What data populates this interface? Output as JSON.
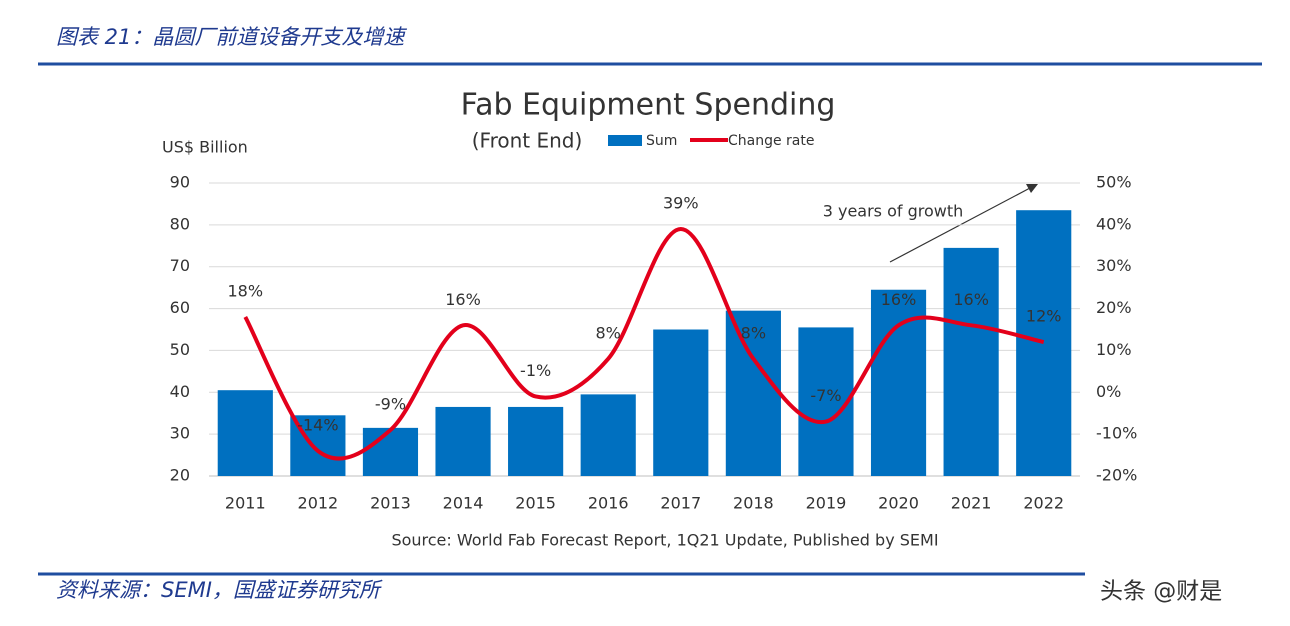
{
  "header": {
    "title": "图表 21：晶圆厂前道设备开支及增速"
  },
  "footer": {
    "source": "资料来源：SEMI，国盛证券研究所",
    "watermark": "头条 @财是"
  },
  "chart_data": {
    "type": "bar-line",
    "title": "Fab Equipment Spending",
    "subtitle": "(Front End)",
    "y_label": "US$ Billion",
    "annotation": "3 years of growth",
    "source": "Source: World Fab Forecast Report, 1Q21 Update, Published by SEMI",
    "categories": [
      "2011",
      "2012",
      "2013",
      "2014",
      "2015",
      "2016",
      "2017",
      "2018",
      "2019",
      "2020",
      "2021",
      "2022"
    ],
    "series": [
      {
        "name": "Sum",
        "type": "bar",
        "color": "#0070c0",
        "values": [
          40.5,
          34.5,
          31.5,
          36.5,
          36.5,
          39.5,
          55,
          59.5,
          55.5,
          64.5,
          74.5,
          83.5
        ]
      },
      {
        "name": "Change rate",
        "type": "line",
        "axis": "y2",
        "color": "#e3001b",
        "values": [
          18,
          -14,
          -9,
          16,
          -1,
          8,
          39,
          8,
          -7,
          16,
          16,
          12
        ],
        "value_labels": [
          "18%",
          "-14%",
          "-9%",
          "16%",
          "-1%",
          "8%",
          "39%",
          "8%",
          "-7%",
          "16%",
          "16%",
          "12%"
        ]
      }
    ],
    "ylim": [
      20,
      90
    ],
    "yticks": [
      20,
      30,
      40,
      50,
      60,
      70,
      80,
      90
    ],
    "y2lim": [
      -20,
      50
    ],
    "y2ticks": [
      {
        "value": -20,
        "label": "-20%"
      },
      {
        "value": -10,
        "label": "-10%"
      },
      {
        "value": 0,
        "label": "0%"
      },
      {
        "value": 10,
        "label": "10%"
      },
      {
        "value": 20,
        "label": "20%"
      },
      {
        "value": 30,
        "label": "30%"
      },
      {
        "value": 40,
        "label": "40%"
      },
      {
        "value": 50,
        "label": "50%"
      }
    ],
    "grid": true
  }
}
